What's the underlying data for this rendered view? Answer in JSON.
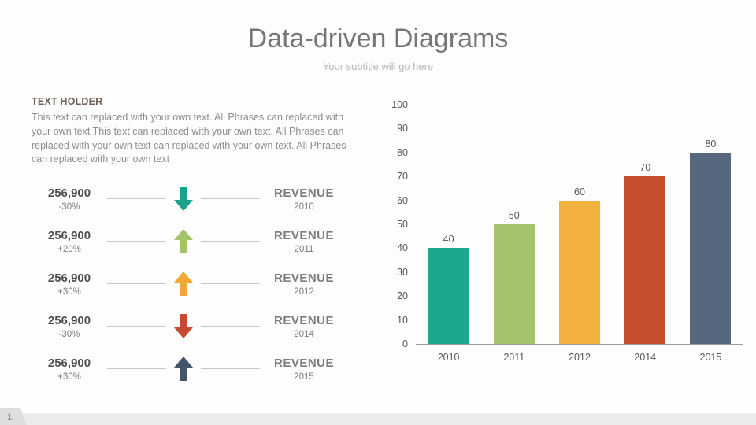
{
  "slide": {
    "title": "Data-driven Diagrams",
    "subtitle": "Your subtitle will go here",
    "page_number": "1"
  },
  "text_holder": {
    "heading": "TEXT HOLDER",
    "body": "This text can replaced with your own text. All Phrases can replaced with your own text This text can replaced with your own text. All Phrases can replaced with your own text can replaced with your own text. All Phrases can replaced with your own text"
  },
  "revenue_rows": [
    {
      "value": "256,900",
      "change": "-30%",
      "direction": "down",
      "color": "#17a28c",
      "label": "REVENUE",
      "year": "2010"
    },
    {
      "value": "256,900",
      "change": "+20%",
      "direction": "up",
      "color": "#a4c266",
      "label": "REVENUE",
      "year": "2011"
    },
    {
      "value": "256,900",
      "change": "+30%",
      "direction": "up",
      "color": "#f2a838",
      "label": "REVENUE",
      "year": "2012"
    },
    {
      "value": "256,900",
      "change": "-30%",
      "direction": "down",
      "color": "#c44b30",
      "label": "REVENUE",
      "year": "2014"
    },
    {
      "value": "256,900",
      "change": "+30%",
      "direction": "up",
      "color": "#44546a",
      "label": "REVENUE",
      "year": "2015"
    }
  ],
  "chart_data": {
    "type": "bar",
    "categories": [
      "2010",
      "2011",
      "2012",
      "2014",
      "2015"
    ],
    "values": [
      40,
      50,
      60,
      70,
      80
    ],
    "colors": [
      "#1ca78f",
      "#a5c26c",
      "#f2b03c",
      "#c4502f",
      "#56687d"
    ],
    "title": "",
    "xlabel": "",
    "ylabel": "",
    "ylim": [
      0,
      100
    ],
    "ytick_step": 10,
    "grid": "top-line-only",
    "legend": "none"
  }
}
